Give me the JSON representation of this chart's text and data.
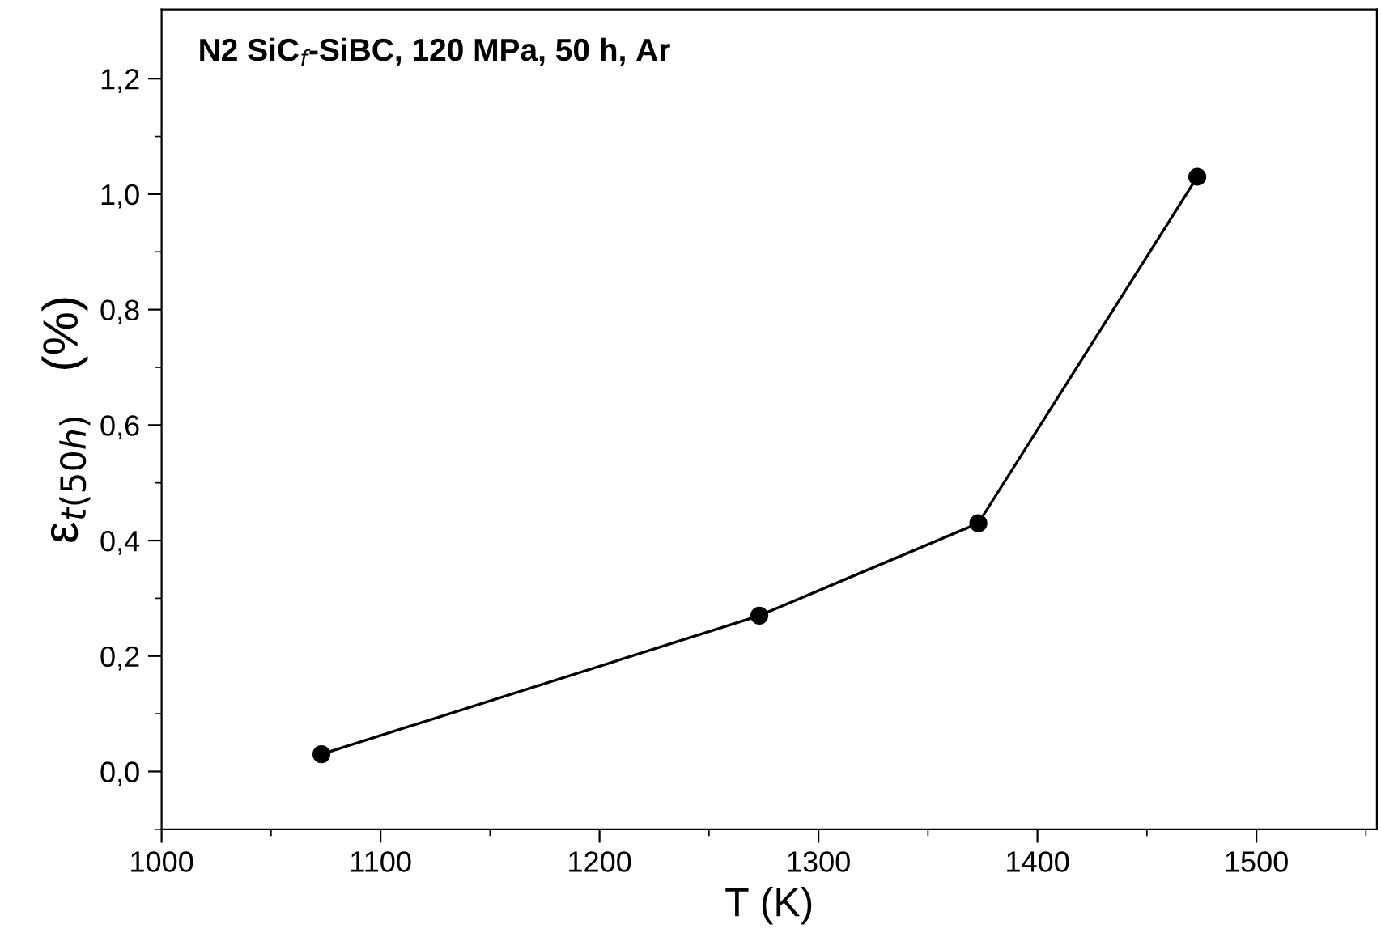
{
  "chart_data": {
    "type": "line",
    "xlabel": "T (K)",
    "ylabel": "ε$_{t(50h)}$   (%)",
    "annotations": [
      "N2 SiC$_{f}$-SiBC, 120 MPa, 50 h, Ar"
    ],
    "x": [
      1073,
      1273,
      1373,
      1473
    ],
    "series": [
      {
        "color": "#000000",
        "values": [
          0.03,
          0.27,
          0.43,
          1.03
        ]
      }
    ],
    "marker": "circle",
    "line_style": "solid",
    "grid": false,
    "legend": false,
    "xlim": [
      1000,
      1555
    ],
    "ylim": [
      -0.1,
      1.32
    ],
    "xticks": [
      1000,
      {
        "value": 1050,
        "label": null
      },
      1100,
      {
        "value": 1150,
        "label": null
      },
      1200,
      {
        "value": 1250,
        "label": null
      },
      1300,
      {
        "value": 1350,
        "label": null
      },
      1400,
      {
        "value": 1450,
        "label": null
      },
      1500,
      {
        "value": 1550,
        "label": null
      }
    ],
    "yticks": [
      {
        "value": -0.1,
        "label": null
      },
      {
        "value": 0.0,
        "label": "0,0"
      },
      {
        "value": 0.1,
        "label": null
      },
      {
        "value": 0.2,
        "label": "0,2"
      },
      {
        "value": 0.3,
        "label": null
      },
      {
        "value": 0.4,
        "label": "0,4"
      },
      {
        "value": 0.5,
        "label": null
      },
      {
        "value": 0.6,
        "label": "0,6"
      },
      {
        "value": 0.7,
        "label": null
      },
      {
        "value": 0.8,
        "label": "0,8"
      },
      {
        "value": 0.9,
        "label": null
      },
      {
        "value": 1.0,
        "label": "1,0"
      },
      {
        "value": 1.1,
        "label": null
      },
      {
        "value": 1.2,
        "label": "1,2"
      }
    ]
  }
}
